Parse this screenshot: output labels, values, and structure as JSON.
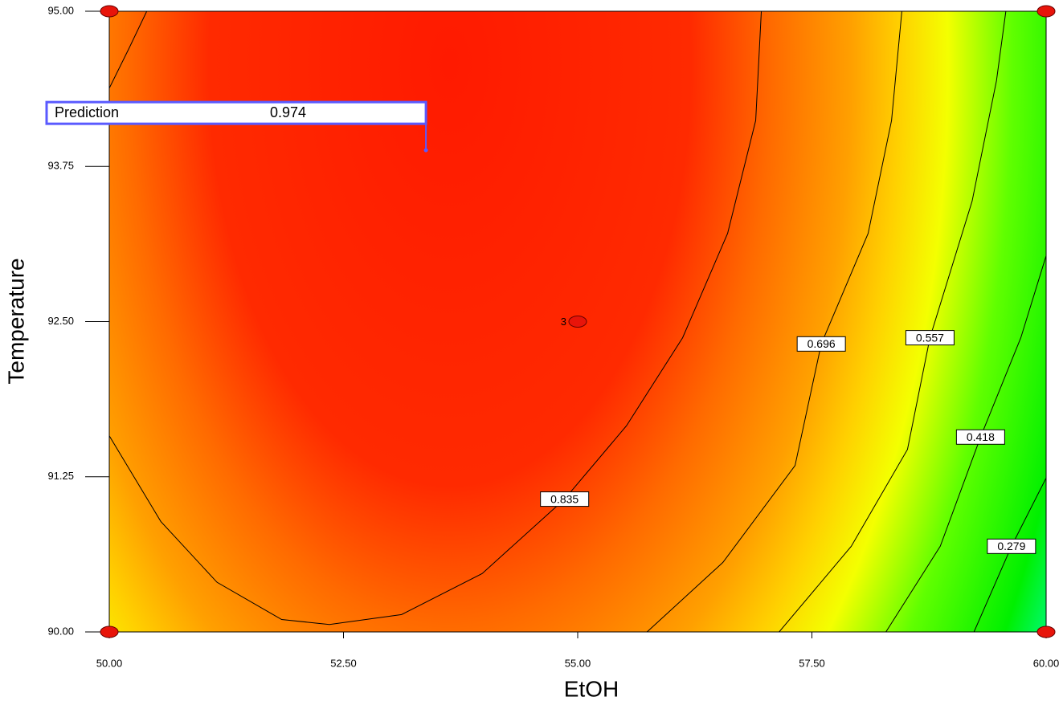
{
  "chart_data": {
    "type": "contour",
    "x_label": "EtOH",
    "y_label": "Temperature",
    "xlim": [
      50,
      60
    ],
    "ylim": [
      90,
      95
    ],
    "xticks": [
      {
        "value": 50,
        "label": "50.00"
      },
      {
        "value": 52.5,
        "label": "52.50"
      },
      {
        "value": 55,
        "label": "55.00"
      },
      {
        "value": 57.5,
        "label": "57.50"
      },
      {
        "value": 60,
        "label": "60.00"
      }
    ],
    "yticks": [
      {
        "value": 90,
        "label": "90.00"
      },
      {
        "value": 91.25,
        "label": "91.25"
      },
      {
        "value": 92.5,
        "label": "92.50"
      },
      {
        "value": 93.75,
        "label": "93.75"
      },
      {
        "value": 95,
        "label": "95.00"
      }
    ],
    "contours": [
      {
        "level": 0.835,
        "x": [
          50,
          50.55,
          51.15,
          51.84,
          52.35,
          53.12,
          53.98,
          54.86,
          55.52,
          56.12,
          56.6,
          56.9,
          56.96,
          null,
          50,
          50.21,
          50.4
        ],
        "y": [
          91.58,
          90.89,
          90.4,
          90.1,
          90.06,
          90.14,
          90.47,
          91.07,
          91.66,
          92.37,
          93.21,
          94.12,
          95,
          null,
          94.38,
          94.7,
          95
        ]
      },
      {
        "level": 0.696,
        "x": [
          55.74,
          56.55,
          57.32,
          57.6,
          58.1,
          58.35,
          58.46
        ],
        "y": [
          90,
          90.56,
          91.34,
          92.32,
          93.21,
          94.12,
          95
        ]
      },
      {
        "level": 0.557,
        "x": [
          57.15,
          57.92,
          58.52,
          58.76,
          59.21,
          59.47,
          59.57
        ],
        "y": [
          90,
          90.69,
          91.47,
          92.37,
          93.47,
          94.44,
          95
        ]
      },
      {
        "level": 0.418,
        "x": [
          58.29,
          58.87,
          59.3,
          59.73,
          60
        ],
        "y": [
          90,
          90.69,
          91.57,
          92.37,
          93.03
        ]
      },
      {
        "level": 0.279,
        "x": [
          59.23,
          59.63,
          60
        ],
        "y": [
          90,
          90.69,
          91.24
        ]
      }
    ],
    "design_points": {
      "x": [
        50,
        50,
        60,
        60
      ],
      "y": [
        90,
        95,
        95,
        90
      ]
    },
    "center_point": {
      "x": 55,
      "y": 92.5,
      "replicates": 3
    },
    "prediction": {
      "label": "Prediction",
      "value": 0.974,
      "x": 53.38,
      "y": 93.88
    }
  }
}
